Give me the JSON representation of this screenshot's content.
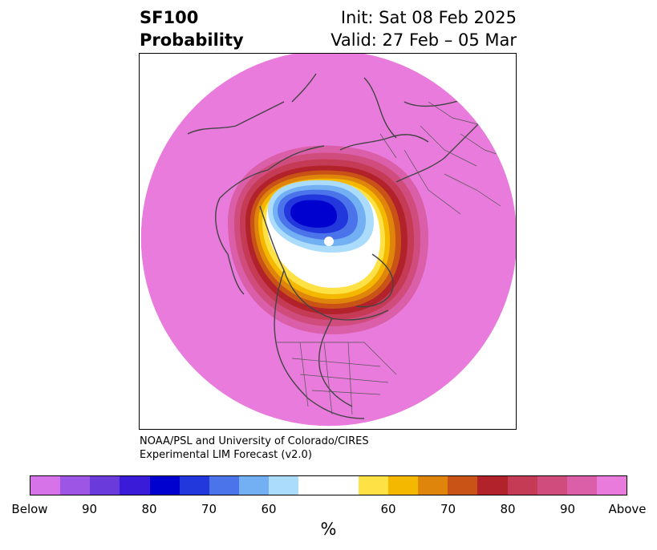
{
  "title": {
    "variable": "SF100",
    "subtitle": "Probability",
    "init": "Init: Sat 08 Feb 2025",
    "valid": "Valid: 27 Feb – 05 Mar"
  },
  "credit": {
    "line1": "NOAA/PSL and University of Colorado/CIRES",
    "line2": "Experimental LIM Forecast (v2.0)"
  },
  "colorbar": {
    "unit": "%",
    "colors": [
      "#d673e8",
      "#9c55e4",
      "#6a3adb",
      "#3a1bd7",
      "#0000cf",
      "#2338dc",
      "#4c74ea",
      "#72b0f3",
      "#acdcfc",
      "#ffffff",
      "#ffffff",
      "#fee145",
      "#f5b800",
      "#e0850c",
      "#c95316",
      "#b2222a",
      "#c53a55",
      "#cf4c7d",
      "#da5ea8",
      "#e87bdb"
    ],
    "tick_labels": [
      "Below",
      "90",
      "80",
      "70",
      "60",
      "60",
      "70",
      "80",
      "90",
      "Above"
    ]
  },
  "map": {
    "projection": "polar stereographic (Northern Hemisphere)",
    "below_center_label": "blue/white region over Arctic",
    "fill_above": "#e87bdb"
  }
}
